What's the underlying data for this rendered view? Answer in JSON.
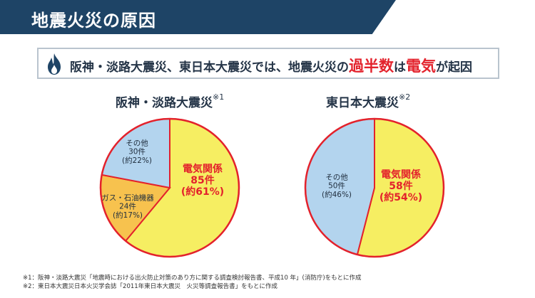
{
  "header": {
    "title": "地震火災の原因"
  },
  "banner": {
    "icon": "flame-icon",
    "text_before": "阪神・淡路大震災、東日本大震災では、地震火災の",
    "highlight1": "過半数",
    "text_middle": "は",
    "highlight2": "電気",
    "text_after": "が起因"
  },
  "chart_data": [
    {
      "type": "pie",
      "title": "阪神・淡路大震災",
      "title_note": "※1",
      "slices": [
        {
          "name": "電気関係",
          "count": "85件",
          "percent_label": "(約61%)",
          "value": 61,
          "color": "#f6ee62",
          "text_color": "#e3222c"
        },
        {
          "name": "ガス・石油機器",
          "count": "24件",
          "percent_label": "(約17%)",
          "value": 17,
          "color": "#f7c24e",
          "text_color": "#1f2d3d"
        },
        {
          "name": "その他",
          "count": "30件",
          "percent_label": "(約22%)",
          "value": 22,
          "color": "#b3d4ee",
          "text_color": "#1f2d3d"
        }
      ]
    },
    {
      "type": "pie",
      "title": "東日本大震災",
      "title_note": "※2",
      "slices": [
        {
          "name": "電気関係",
          "count": "58件",
          "percent_label": "(約54%)",
          "value": 54,
          "color": "#f6ee62",
          "text_color": "#e3222c"
        },
        {
          "name": "その他",
          "count": "50件",
          "percent_label": "(約46%)",
          "value": 46,
          "color": "#b3d4ee",
          "text_color": "#1f2d3d"
        }
      ]
    }
  ],
  "footnotes": [
    "※1：阪神・淡路大震災「地震時における出火防止対策のあり方に関する調査検討報告書、平成10 年」(消防庁)をもとに作成",
    "※2：東日本大震災日本火災学会誌「2011年東日本大震災　火災等調査報告書」をもとに作成"
  ],
  "colors": {
    "header_bg": "#1e4466",
    "accent_red": "#e3222c",
    "pie_stroke": "#e3222c"
  }
}
